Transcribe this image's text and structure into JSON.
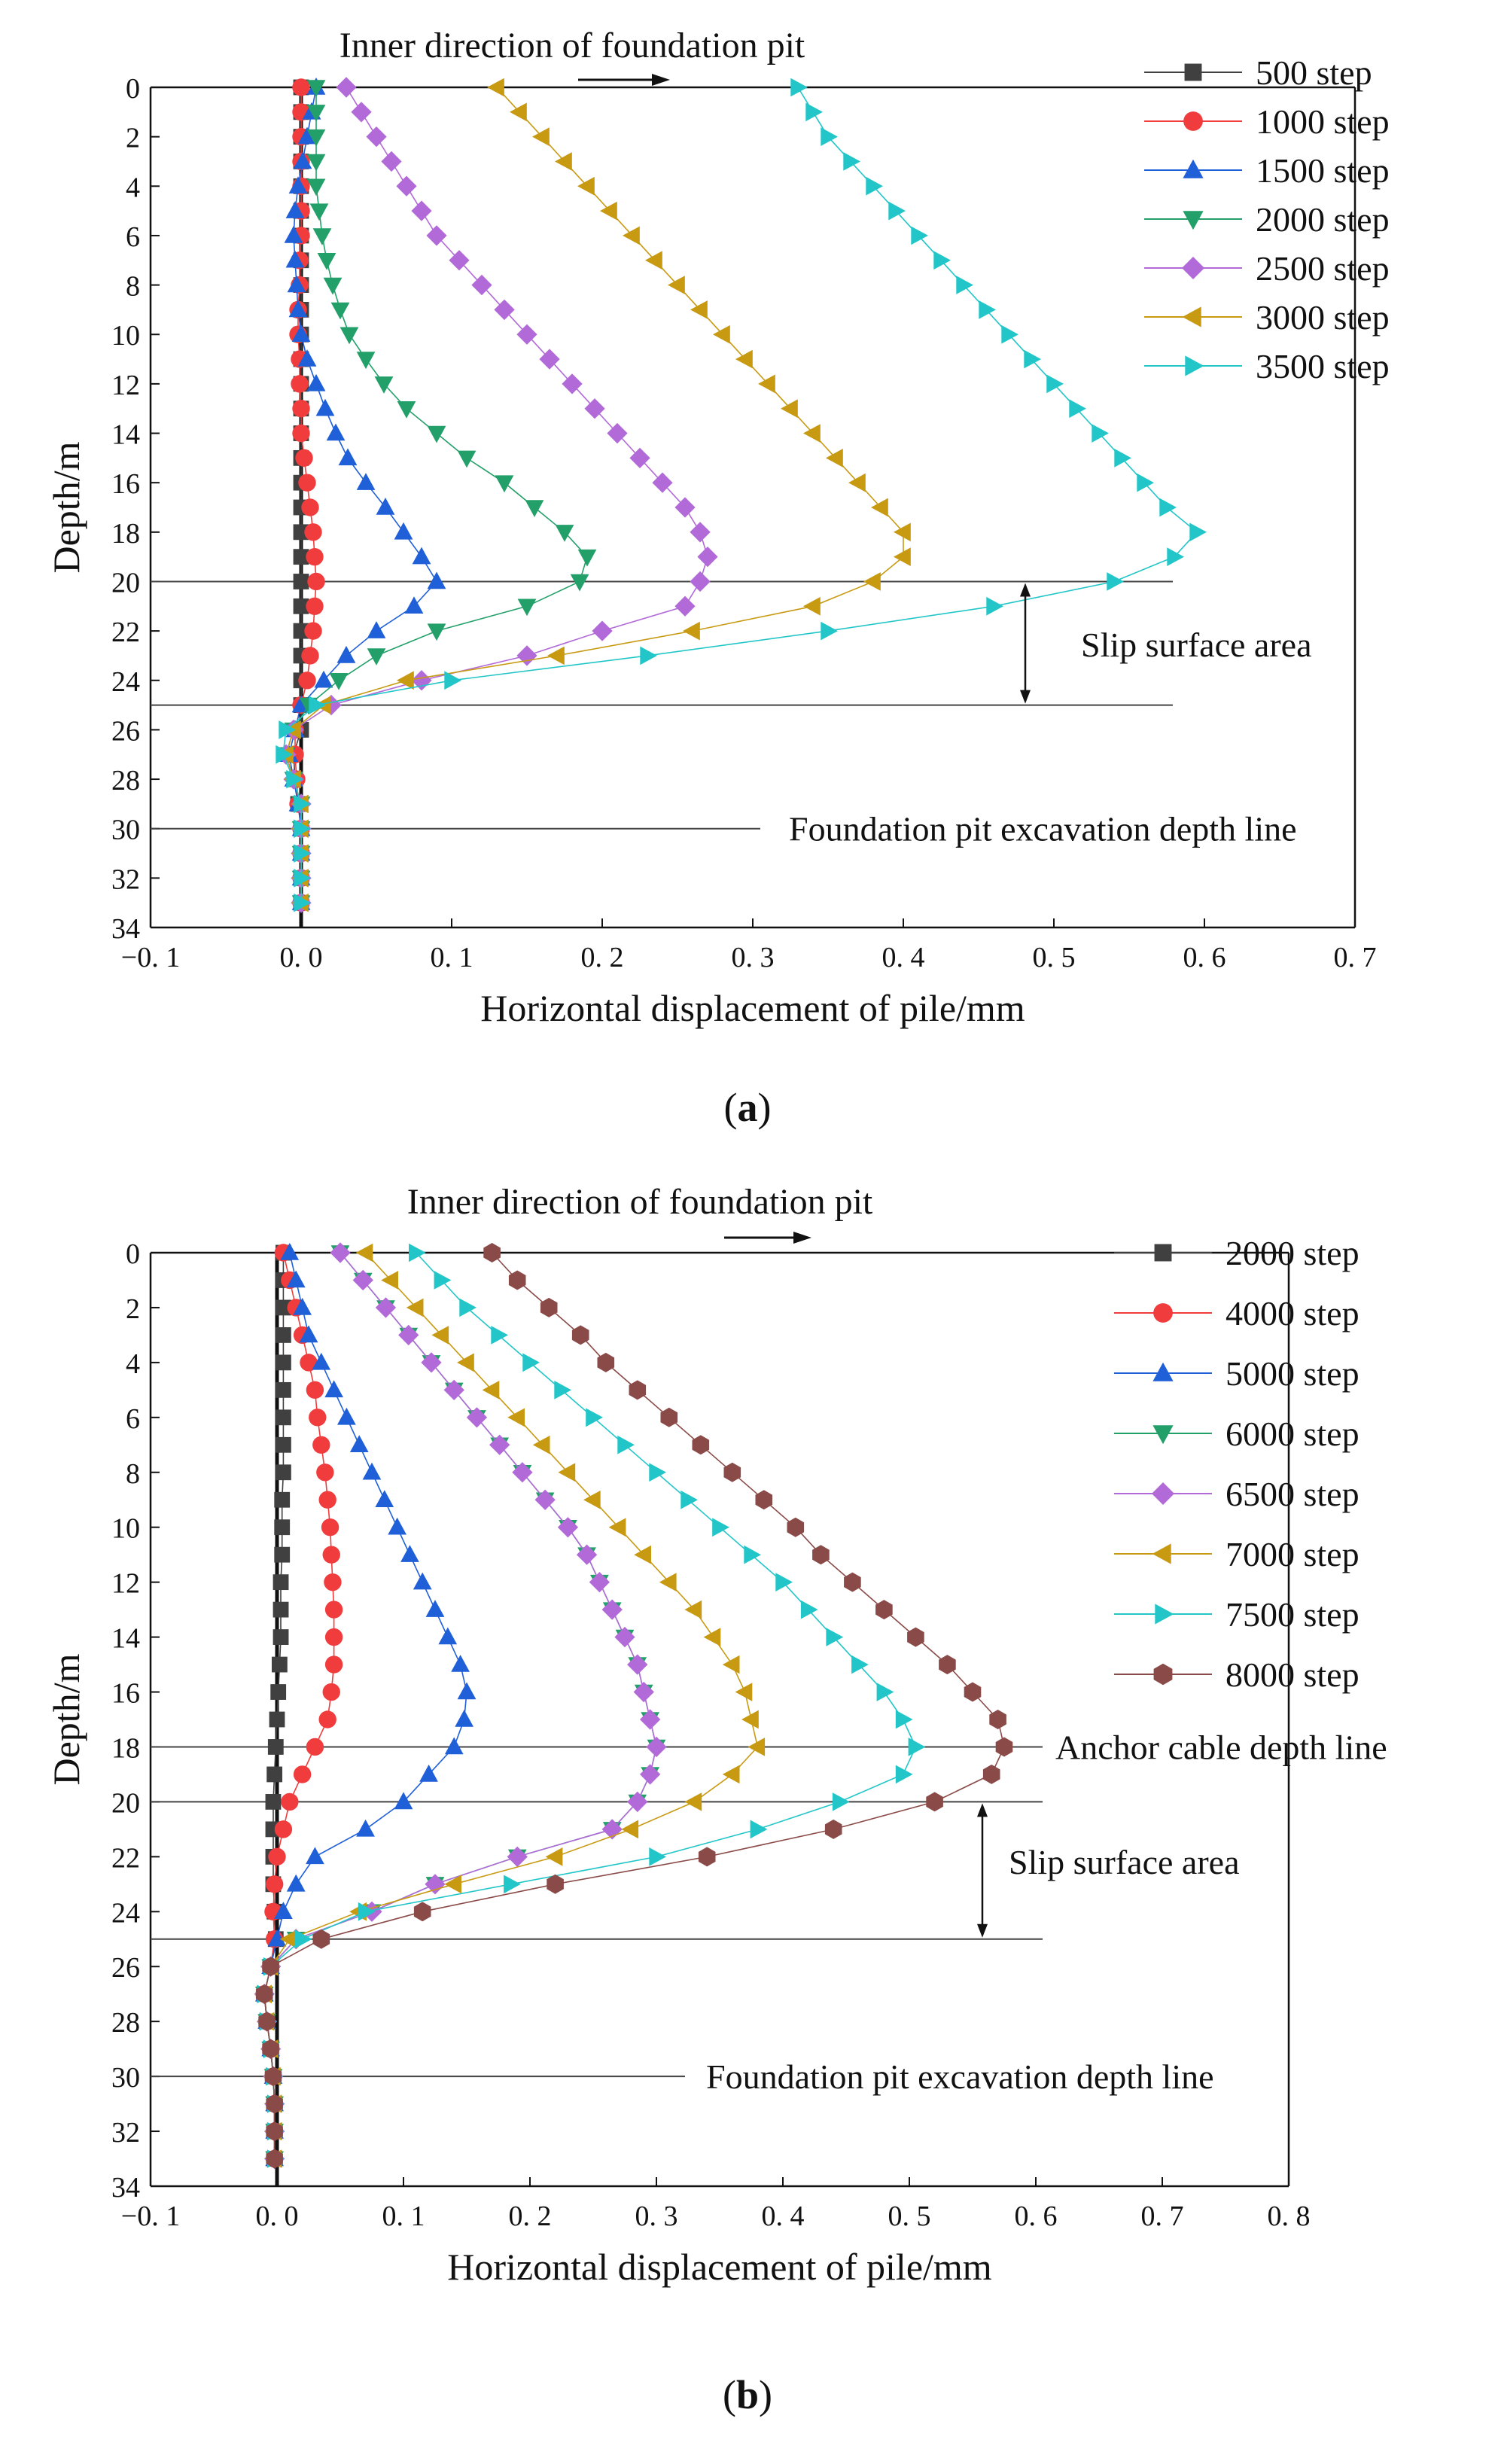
{
  "chart_data": [
    {
      "type": "line",
      "panel_label": "a",
      "xlabel": "Horizontal displacement of pile/mm",
      "ylabel": "Depth/m",
      "xlim": [
        -0.1,
        0.7
      ],
      "ylim": [
        0,
        34
      ],
      "y_inverted": true,
      "xticks": [
        -0.1,
        0.0,
        0.1,
        0.2,
        0.3,
        0.4,
        0.5,
        0.6,
        0.7
      ],
      "xtick_labels": [
        "−0. 1",
        "0. 0",
        "0. 1",
        "0. 2",
        "0. 3",
        "0. 4",
        "0. 5",
        "0. 6",
        "0. 7"
      ],
      "yticks": [
        0,
        2,
        4,
        6,
        8,
        10,
        12,
        14,
        16,
        18,
        20,
        22,
        24,
        26,
        28,
        30,
        32,
        34
      ],
      "ytick_labels": [
        "0",
        "2",
        "4",
        "6",
        "8",
        "10",
        "12",
        "14",
        "16",
        "18",
        "20",
        "22",
        "24",
        "26",
        "28",
        "30",
        "32",
        "34"
      ],
      "legend_position": "top-right",
      "depths": [
        0,
        1,
        2,
        3,
        4,
        5,
        6,
        7,
        8,
        9,
        10,
        11,
        12,
        13,
        14,
        15,
        16,
        17,
        18,
        19,
        20,
        21,
        22,
        23,
        24,
        25,
        26,
        27,
        28,
        29,
        30,
        31,
        32,
        33
      ],
      "series": [
        {
          "name": "500 step",
          "marker": "square",
          "color": "#404040",
          "values": [
            0.0,
            0.0,
            0.0,
            0.0,
            0.0,
            0.0,
            0.0,
            0.0,
            0.0,
            0.0,
            0.0,
            0.0,
            0.0,
            0.0,
            0.0,
            0.0,
            0.0,
            0.0,
            0.0,
            0.0,
            0.0,
            0.0,
            0.0,
            0.0,
            0.0,
            0.0,
            0.0,
            -0.005,
            -0.004,
            -0.002,
            0.0,
            0.0,
            0.0,
            0.0
          ]
        },
        {
          "name": "1000 step",
          "marker": "circle",
          "color": "#f03c3c",
          "values": [
            0.0,
            0.0,
            0.0,
            0.0,
            0.0,
            0.0,
            0.0,
            -0.001,
            -0.001,
            -0.002,
            -0.002,
            -0.001,
            -0.001,
            0.0,
            0.0,
            0.002,
            0.004,
            0.006,
            0.008,
            0.009,
            0.01,
            0.009,
            0.008,
            0.006,
            0.004,
            0.0,
            -0.004,
            -0.004,
            -0.003,
            -0.002,
            0.0,
            0.0,
            0.0,
            0.0
          ]
        },
        {
          "name": "1500 step",
          "marker": "triangle-up",
          "color": "#1f5fd8",
          "values": [
            0.01,
            0.007,
            0.004,
            0.001,
            -0.002,
            -0.004,
            -0.005,
            -0.004,
            -0.003,
            -0.002,
            0.0,
            0.004,
            0.01,
            0.016,
            0.023,
            0.031,
            0.043,
            0.056,
            0.068,
            0.08,
            0.09,
            0.075,
            0.05,
            0.03,
            0.015,
            0.0,
            -0.004,
            -0.008,
            -0.005,
            -0.002,
            0.0,
            0.0,
            0.0,
            0.0
          ]
        },
        {
          "name": "2000 step",
          "marker": "triangle-down",
          "color": "#23a06a",
          "values": [
            0.01,
            0.01,
            0.01,
            0.01,
            0.01,
            0.012,
            0.014,
            0.017,
            0.021,
            0.026,
            0.032,
            0.043,
            0.055,
            0.07,
            0.09,
            0.11,
            0.135,
            0.155,
            0.175,
            0.19,
            0.185,
            0.15,
            0.09,
            0.05,
            0.025,
            0.005,
            -0.005,
            -0.01,
            -0.005,
            0.0,
            0.0,
            0.0,
            0.0,
            0.0
          ]
        },
        {
          "name": "2500 step",
          "marker": "diamond",
          "color": "#b26ad8",
          "values": [
            0.03,
            0.04,
            0.05,
            0.06,
            0.07,
            0.08,
            0.09,
            0.105,
            0.12,
            0.135,
            0.15,
            0.165,
            0.18,
            0.195,
            0.21,
            0.225,
            0.24,
            0.255,
            0.265,
            0.27,
            0.265,
            0.255,
            0.2,
            0.15,
            0.08,
            0.02,
            -0.005,
            -0.01,
            -0.005,
            0.0,
            0.0,
            0.0,
            0.0,
            0.0
          ]
        },
        {
          "name": "3000 step",
          "marker": "triangle-left",
          "color": "#c89a12",
          "values": [
            0.13,
            0.145,
            0.16,
            0.175,
            0.19,
            0.205,
            0.22,
            0.235,
            0.25,
            0.265,
            0.28,
            0.295,
            0.31,
            0.325,
            0.34,
            0.355,
            0.37,
            0.385,
            0.4,
            0.4,
            0.38,
            0.34,
            0.26,
            0.17,
            0.07,
            0.015,
            -0.005,
            -0.01,
            -0.005,
            0.0,
            0.0,
            0.0,
            0.0,
            0.0
          ]
        },
        {
          "name": "3500 step",
          "marker": "triangle-right",
          "color": "#22c6c8",
          "values": [
            0.33,
            0.34,
            0.35,
            0.365,
            0.38,
            0.395,
            0.41,
            0.425,
            0.44,
            0.455,
            0.47,
            0.485,
            0.5,
            0.515,
            0.53,
            0.545,
            0.56,
            0.575,
            0.595,
            0.58,
            0.54,
            0.46,
            0.35,
            0.23,
            0.1,
            0.01,
            -0.01,
            -0.012,
            -0.005,
            0.0,
            0.0,
            0.0,
            0.0,
            0.0
          ]
        }
      ],
      "reference_lines": [
        {
          "depth": 20
        },
        {
          "depth": 25
        },
        {
          "depth": 30,
          "label": "Foundation pit excavation depth line"
        }
      ],
      "annotations": {
        "direction_label": "Inner direction of foundation pit",
        "slip_label": "Slip surface area"
      }
    },
    {
      "type": "line",
      "panel_label": "b",
      "xlabel": "Horizontal displacement of pile/mm",
      "ylabel": "Depth/m",
      "xlim": [
        -0.1,
        0.8
      ],
      "ylim": [
        0,
        34
      ],
      "y_inverted": true,
      "xticks": [
        -0.1,
        0.0,
        0.1,
        0.2,
        0.3,
        0.4,
        0.5,
        0.6,
        0.7,
        0.8
      ],
      "xtick_labels": [
        "−0. 1",
        "0. 0",
        "0. 1",
        "0. 2",
        "0. 3",
        "0. 4",
        "0. 5",
        "0. 6",
        "0. 7",
        "0. 8"
      ],
      "yticks": [
        0,
        2,
        4,
        6,
        8,
        10,
        12,
        14,
        16,
        18,
        20,
        22,
        24,
        26,
        28,
        30,
        32,
        34
      ],
      "ytick_labels": [
        "0",
        "2",
        "4",
        "6",
        "8",
        "10",
        "12",
        "14",
        "16",
        "18",
        "20",
        "22",
        "24",
        "26",
        "28",
        "30",
        "32",
        "34"
      ],
      "legend_position": "top-right",
      "depths": [
        0,
        1,
        2,
        3,
        4,
        5,
        6,
        7,
        8,
        9,
        10,
        11,
        12,
        13,
        14,
        15,
        16,
        17,
        18,
        19,
        20,
        21,
        22,
        23,
        24,
        25,
        26,
        27,
        28,
        29,
        30,
        31,
        32,
        33
      ],
      "series": [
        {
          "name": "2000 step",
          "marker": "square",
          "color": "#404040",
          "values": [
            0.005,
            0.005,
            0.005,
            0.005,
            0.005,
            0.005,
            0.005,
            0.005,
            0.005,
            0.004,
            0.004,
            0.004,
            0.003,
            0.003,
            0.003,
            0.002,
            0.001,
            0.0,
            -0.001,
            -0.002,
            -0.003,
            -0.003,
            -0.003,
            -0.003,
            -0.002,
            -0.001,
            -0.005,
            -0.01,
            -0.008,
            -0.005,
            -0.003,
            -0.002,
            -0.002,
            -0.002
          ]
        },
        {
          "name": "4000 step",
          "marker": "circle",
          "color": "#f03c3c",
          "values": [
            0.005,
            0.01,
            0.015,
            0.02,
            0.025,
            0.03,
            0.032,
            0.035,
            0.038,
            0.04,
            0.042,
            0.043,
            0.044,
            0.045,
            0.045,
            0.045,
            0.043,
            0.04,
            0.03,
            0.02,
            0.01,
            0.005,
            0.0,
            -0.002,
            -0.003,
            -0.002,
            -0.005,
            -0.01,
            -0.008,
            -0.005,
            -0.003,
            -0.002,
            -0.002,
            -0.002
          ]
        },
        {
          "name": "5000 step",
          "marker": "triangle-up",
          "color": "#1f5fd8",
          "values": [
            0.01,
            0.015,
            0.02,
            0.025,
            0.035,
            0.045,
            0.055,
            0.065,
            0.075,
            0.085,
            0.095,
            0.105,
            0.115,
            0.125,
            0.135,
            0.145,
            0.15,
            0.148,
            0.14,
            0.12,
            0.1,
            0.07,
            0.03,
            0.015,
            0.005,
            0.0,
            -0.005,
            -0.01,
            -0.008,
            -0.005,
            -0.003,
            -0.002,
            -0.002,
            -0.002
          ]
        },
        {
          "name": "6000 step",
          "marker": "triangle-down",
          "color": "#23a06a",
          "values": [
            0.05,
            0.068,
            0.086,
            0.104,
            0.122,
            0.14,
            0.158,
            0.176,
            0.194,
            0.212,
            0.23,
            0.245,
            0.255,
            0.265,
            0.275,
            0.285,
            0.29,
            0.295,
            0.3,
            0.295,
            0.285,
            0.265,
            0.19,
            0.125,
            0.075,
            0.015,
            -0.005,
            -0.01,
            -0.008,
            -0.005,
            -0.003,
            -0.002,
            -0.002,
            -0.002
          ]
        },
        {
          "name": "6500 step",
          "marker": "diamond",
          "color": "#b26ad8",
          "values": [
            0.05,
            0.068,
            0.086,
            0.104,
            0.122,
            0.14,
            0.158,
            0.176,
            0.194,
            0.212,
            0.23,
            0.245,
            0.255,
            0.265,
            0.275,
            0.285,
            0.29,
            0.295,
            0.3,
            0.295,
            0.285,
            0.265,
            0.19,
            0.125,
            0.075,
            0.015,
            -0.005,
            -0.01,
            -0.008,
            -0.005,
            -0.003,
            -0.002,
            -0.002,
            -0.002
          ]
        },
        {
          "name": "7000 step",
          "marker": "triangle-left",
          "color": "#c89a12",
          "values": [
            0.07,
            0.09,
            0.11,
            0.13,
            0.15,
            0.17,
            0.19,
            0.21,
            0.23,
            0.25,
            0.27,
            0.29,
            0.31,
            0.33,
            0.345,
            0.36,
            0.37,
            0.375,
            0.38,
            0.36,
            0.33,
            0.28,
            0.22,
            0.14,
            0.065,
            0.01,
            -0.005,
            -0.01,
            -0.008,
            -0.005,
            -0.003,
            -0.002,
            -0.002,
            -0.002
          ]
        },
        {
          "name": "7500 step",
          "marker": "triangle-right",
          "color": "#22c6c8",
          "values": [
            0.11,
            0.13,
            0.15,
            0.175,
            0.2,
            0.225,
            0.25,
            0.275,
            0.3,
            0.325,
            0.35,
            0.375,
            0.4,
            0.42,
            0.44,
            0.46,
            0.48,
            0.495,
            0.505,
            0.495,
            0.445,
            0.38,
            0.3,
            0.185,
            0.07,
            0.02,
            -0.005,
            -0.01,
            -0.008,
            -0.005,
            -0.003,
            -0.002,
            -0.002,
            -0.002
          ]
        },
        {
          "name": "8000 step",
          "marker": "hexagon",
          "color": "#8a4a48",
          "values": [
            0.17,
            0.19,
            0.215,
            0.24,
            0.26,
            0.285,
            0.31,
            0.335,
            0.36,
            0.385,
            0.41,
            0.43,
            0.455,
            0.48,
            0.505,
            0.53,
            0.55,
            0.57,
            0.575,
            0.565,
            0.52,
            0.44,
            0.34,
            0.22,
            0.115,
            0.035,
            -0.005,
            -0.01,
            -0.008,
            -0.005,
            -0.003,
            -0.002,
            -0.002,
            -0.002
          ]
        }
      ],
      "reference_lines": [
        {
          "depth": 18,
          "label": "Anchor cable depth line"
        },
        {
          "depth": 20
        },
        {
          "depth": 25
        },
        {
          "depth": 30,
          "label": "Foundation pit excavation depth line"
        }
      ],
      "annotations": {
        "direction_label": "Inner direction of foundation pit",
        "slip_label": "Slip surface area"
      }
    }
  ],
  "captions": {
    "a": "a",
    "b": "b"
  }
}
